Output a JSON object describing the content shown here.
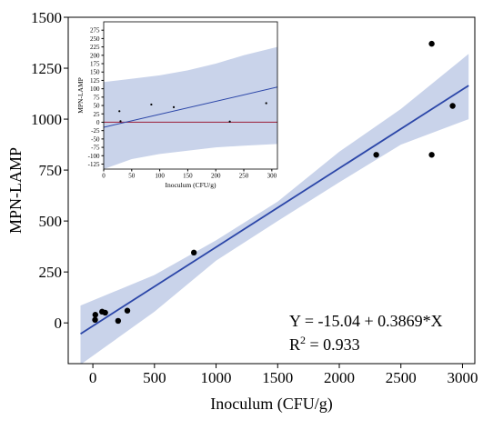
{
  "chart_data": [
    {
      "type": "scatter",
      "xlabel": "Inoculum (CFU/g)",
      "ylabel": "MPN-LAMP",
      "xlim": [
        -200,
        3100
      ],
      "ylim": [
        -200,
        1500
      ],
      "xticks": [
        0,
        500,
        1000,
        1500,
        2000,
        2500,
        3000
      ],
      "yticks": [
        0,
        250,
        500,
        750,
        1000,
        1250,
        1500
      ],
      "series": [
        {
          "x": [
            18,
            20,
            75,
            100,
            205,
            280,
            820,
            2300,
            2750,
            2750,
            2920
          ],
          "y": [
            15,
            40,
            55,
            50,
            10,
            60,
            345,
            825,
            825,
            1370,
            1065
          ]
        }
      ],
      "fit": {
        "x": [
          -100,
          3050
        ],
        "y": [
          -53.7,
          1165.0
        ]
      },
      "confidence_band": {
        "x": [
          -100,
          500,
          1000,
          1500,
          2000,
          2500,
          3050
        ],
        "lower": [
          -205,
          55,
          305,
          500,
          690,
          875,
          1000
        ],
        "upper": [
          85,
          235,
          405,
          595,
          840,
          1050,
          1320
        ]
      },
      "annotations": {
        "equation": "Y = -15.04 + 0.3869*X",
        "r2_base": "R",
        "r2_sup": "2",
        "r2_rest": " = 0.933"
      },
      "colors": {
        "points": "#000000",
        "fit_line": "#2b46a8",
        "band": "#c9d3ea"
      },
      "grid": false,
      "legend": "none"
    },
    {
      "type": "scatter",
      "xlabel": "Inoculum (CFU/g)",
      "ylabel": "MPN-LAMP",
      "xlim": [
        0,
        310
      ],
      "ylim": [
        -140,
        300
      ],
      "xticks": [
        0,
        50,
        100,
        150,
        200,
        250,
        300
      ],
      "yticks": [
        -125,
        -100,
        -75,
        -50,
        -25,
        0,
        25,
        50,
        75,
        100,
        125,
        150,
        175,
        200,
        225,
        250,
        275
      ],
      "series": [
        {
          "x": [
            28,
            30,
            85,
            125,
            225,
            290
          ],
          "y": [
            33,
            3,
            53,
            45,
            2,
            57
          ]
        }
      ],
      "fit": {
        "x": [
          0,
          310
        ],
        "y": [
          -15.0,
          105.0
        ]
      },
      "confidence_band": {
        "x": [
          0,
          50,
          100,
          150,
          200,
          250,
          310
        ],
        "lower": [
          -140,
          -110,
          -95,
          -85,
          -75,
          -70,
          -65
        ],
        "upper": [
          120,
          130,
          140,
          155,
          175,
          200,
          225
        ]
      },
      "reference_line_y": 0,
      "colors": {
        "points": "#000000",
        "fit_line": "#2b46a8",
        "band": "#c9d3ea",
        "reference": "#a0304a"
      },
      "grid": false,
      "legend": "none"
    }
  ]
}
